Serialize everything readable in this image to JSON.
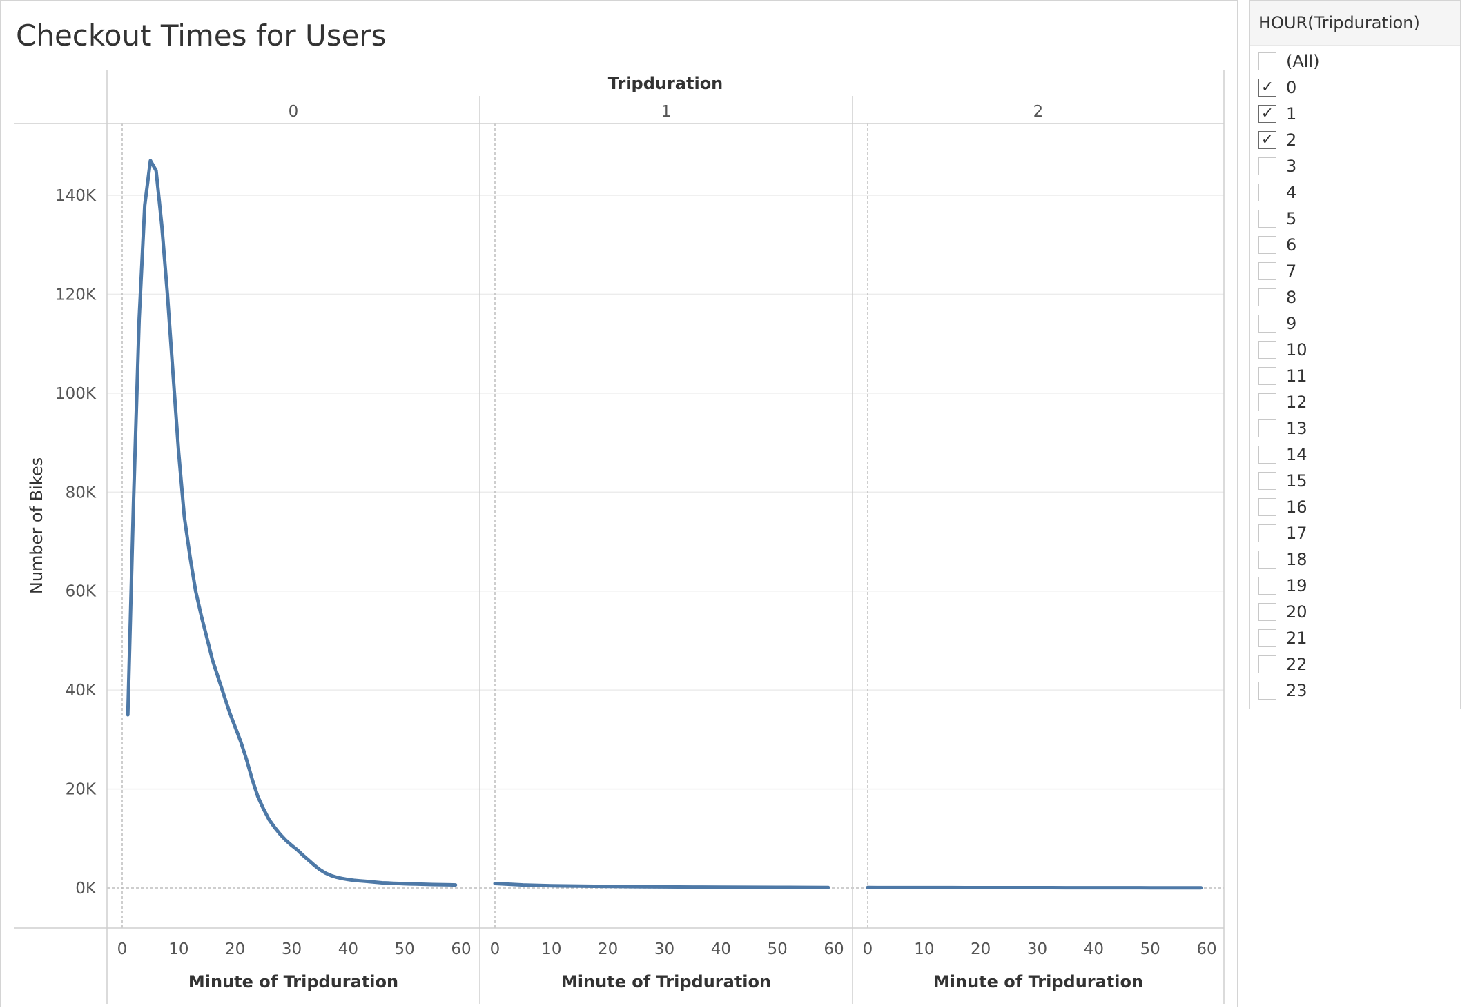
{
  "title": "Checkout Times for Users",
  "filter": {
    "title": "HOUR(Tripduration)",
    "items": [
      {
        "label": "(All)",
        "checked": false
      },
      {
        "label": "0",
        "checked": true
      },
      {
        "label": "1",
        "checked": true
      },
      {
        "label": "2",
        "checked": true
      },
      {
        "label": "3",
        "checked": false
      },
      {
        "label": "4",
        "checked": false
      },
      {
        "label": "5",
        "checked": false
      },
      {
        "label": "6",
        "checked": false
      },
      {
        "label": "7",
        "checked": false
      },
      {
        "label": "8",
        "checked": false
      },
      {
        "label": "9",
        "checked": false
      },
      {
        "label": "10",
        "checked": false
      },
      {
        "label": "11",
        "checked": false
      },
      {
        "label": "12",
        "checked": false
      },
      {
        "label": "13",
        "checked": false
      },
      {
        "label": "14",
        "checked": false
      },
      {
        "label": "15",
        "checked": false
      },
      {
        "label": "16",
        "checked": false
      },
      {
        "label": "17",
        "checked": false
      },
      {
        "label": "18",
        "checked": false
      },
      {
        "label": "19",
        "checked": false
      },
      {
        "label": "20",
        "checked": false
      },
      {
        "label": "21",
        "checked": false
      },
      {
        "label": "22",
        "checked": false
      },
      {
        "label": "23",
        "checked": false
      }
    ]
  },
  "chart_data": {
    "type": "line",
    "column_header": "Tripduration",
    "xlabel": "Minute of Tripduration",
    "ylabel": "Number of Bikes",
    "xlim": [
      0,
      60
    ],
    "ylim": [
      0,
      150000
    ],
    "xticks": [
      0,
      10,
      20,
      30,
      40,
      50,
      60
    ],
    "yticks": [
      0,
      20000,
      40000,
      60000,
      80000,
      100000,
      120000,
      140000
    ],
    "ytick_labels": [
      "0K",
      "20K",
      "40K",
      "60K",
      "80K",
      "100K",
      "120K",
      "140K"
    ],
    "line_color": "#4e79a7",
    "grid": "horizontal",
    "panels": [
      {
        "label": "0",
        "x": [
          1,
          2,
          3,
          4,
          5,
          6,
          7,
          8,
          9,
          10,
          11,
          12,
          13,
          14,
          15,
          16,
          17,
          18,
          19,
          20,
          21,
          22,
          23,
          24,
          25,
          26,
          27,
          28,
          29,
          30,
          31,
          32,
          33,
          34,
          35,
          36,
          37,
          38,
          39,
          40,
          41,
          42,
          43,
          44,
          45,
          46,
          47,
          48,
          49,
          50,
          51,
          52,
          53,
          54,
          55,
          56,
          57,
          58,
          59
        ],
        "y": [
          35000,
          78000,
          115000,
          138000,
          147000,
          145000,
          134000,
          120000,
          104000,
          88000,
          75000,
          67000,
          60000,
          55000,
          50500,
          46000,
          42500,
          39000,
          35500,
          32500,
          29500,
          26000,
          22000,
          18500,
          16000,
          13800,
          12200,
          10800,
          9600,
          8600,
          7700,
          6600,
          5600,
          4600,
          3700,
          3000,
          2500,
          2150,
          1900,
          1700,
          1550,
          1450,
          1350,
          1250,
          1150,
          1050,
          1000,
          950,
          900,
          850,
          820,
          790,
          760,
          730,
          700,
          680,
          660,
          640,
          620
        ]
      },
      {
        "label": "1",
        "x": [
          0,
          5,
          10,
          15,
          20,
          25,
          30,
          35,
          40,
          45,
          50,
          55,
          59
        ],
        "y": [
          900,
          620,
          460,
          380,
          320,
          270,
          230,
          200,
          180,
          160,
          140,
          120,
          110
        ]
      },
      {
        "label": "2",
        "x": [
          0,
          5,
          10,
          15,
          20,
          25,
          30,
          35,
          40,
          45,
          50,
          55,
          59
        ],
        "y": [
          100,
          90,
          85,
          80,
          75,
          70,
          65,
          60,
          55,
          50,
          45,
          40,
          35
        ]
      }
    ]
  }
}
